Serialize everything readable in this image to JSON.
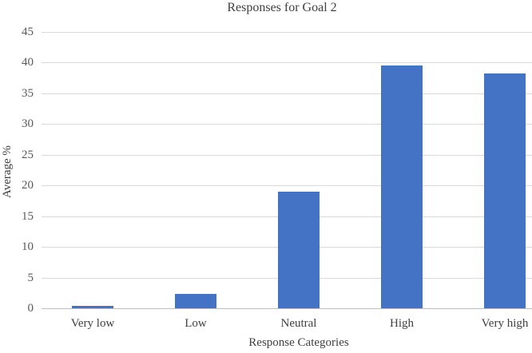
{
  "chart_data": {
    "type": "bar",
    "title": "Responses for Goal 2",
    "xlabel": "Response Categories",
    "ylabel": "Average %",
    "categories": [
      "Very low",
      "Low",
      "Neutral",
      "High",
      "Very high"
    ],
    "values": [
      0.4,
      2.3,
      19,
      39.5,
      38.2
    ],
    "ylim": [
      0,
      45
    ],
    "ytick_step": 5,
    "grid": true,
    "legend": false,
    "colors": {
      "bar": "#4472C4",
      "gridline": "#D9D9D9",
      "axis_line": "#BFBFBF",
      "tick_text": "#595959",
      "category_text": "#404040",
      "title_text": "#404040",
      "axis_title_text": "#404040",
      "background": "#FFFFFF"
    }
  }
}
